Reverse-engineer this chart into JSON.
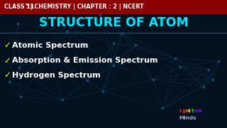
{
  "bg_color": "#04111e",
  "header_bg": "#8b0000",
  "header_text_color": "#ffffff",
  "title": "STRUCTURE OF ATOM",
  "title_color": "#00e8ff",
  "bullet_color": "#ddff00",
  "bullet_items": [
    "Atomic Spectrum",
    "Absorption & Emission Spectrum",
    "Hydrogen Spectrum"
  ],
  "bullet_item_color": "#ffffff",
  "separator_color": "#1e5070",
  "network_color": "#0d2e48",
  "brand_ignited_colors": [
    "#ff2222",
    "#ff2222",
    "#ff9900",
    "#ffff00",
    "#00dd00",
    "#8800ff",
    "#8800ff"
  ],
  "brand_minds_color": "#aaaacc"
}
